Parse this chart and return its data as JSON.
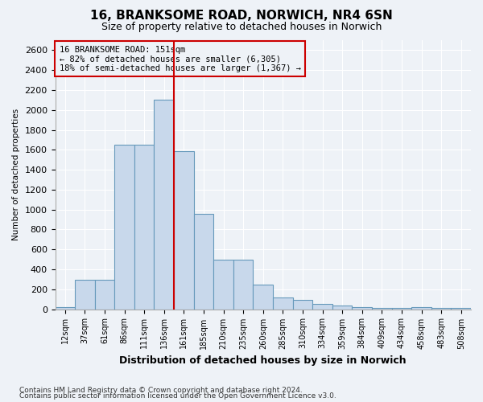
{
  "title1": "16, BRANKSOME ROAD, NORWICH, NR4 6SN",
  "title2": "Size of property relative to detached houses in Norwich",
  "xlabel": "Distribution of detached houses by size in Norwich",
  "ylabel": "Number of detached properties",
  "bar_labels": [
    "12sqm",
    "37sqm",
    "61sqm",
    "86sqm",
    "111sqm",
    "136sqm",
    "161sqm",
    "185sqm",
    "210sqm",
    "235sqm",
    "260sqm",
    "285sqm",
    "310sqm",
    "334sqm",
    "359sqm",
    "384sqm",
    "409sqm",
    "434sqm",
    "458sqm",
    "483sqm",
    "508sqm"
  ],
  "bar_values": [
    20,
    295,
    295,
    1650,
    1650,
    2100,
    1590,
    955,
    500,
    500,
    245,
    120,
    95,
    50,
    38,
    22,
    15,
    10,
    22,
    12,
    12
  ],
  "bar_color": "#c8d8eb",
  "bar_edge_color": "#6699bb",
  "vline_x": 5.5,
  "vline_color": "#cc0000",
  "annotation_text": "16 BRANKSOME ROAD: 151sqm\n← 82% of detached houses are smaller (6,305)\n18% of semi-detached houses are larger (1,367) →",
  "annotation_box_color": "#cc0000",
  "annotation_text_color": "#000000",
  "ylim": [
    0,
    2700
  ],
  "yticks": [
    0,
    200,
    400,
    600,
    800,
    1000,
    1200,
    1400,
    1600,
    1800,
    2000,
    2200,
    2400,
    2600
  ],
  "footer1": "Contains HM Land Registry data © Crown copyright and database right 2024.",
  "footer2": "Contains public sector information licensed under the Open Government Licence v3.0.",
  "background_color": "#eef2f7",
  "grid_color": "#dce6f0",
  "title1_fontsize": 11,
  "title2_fontsize": 9,
  "ann_fontsize": 7.5
}
